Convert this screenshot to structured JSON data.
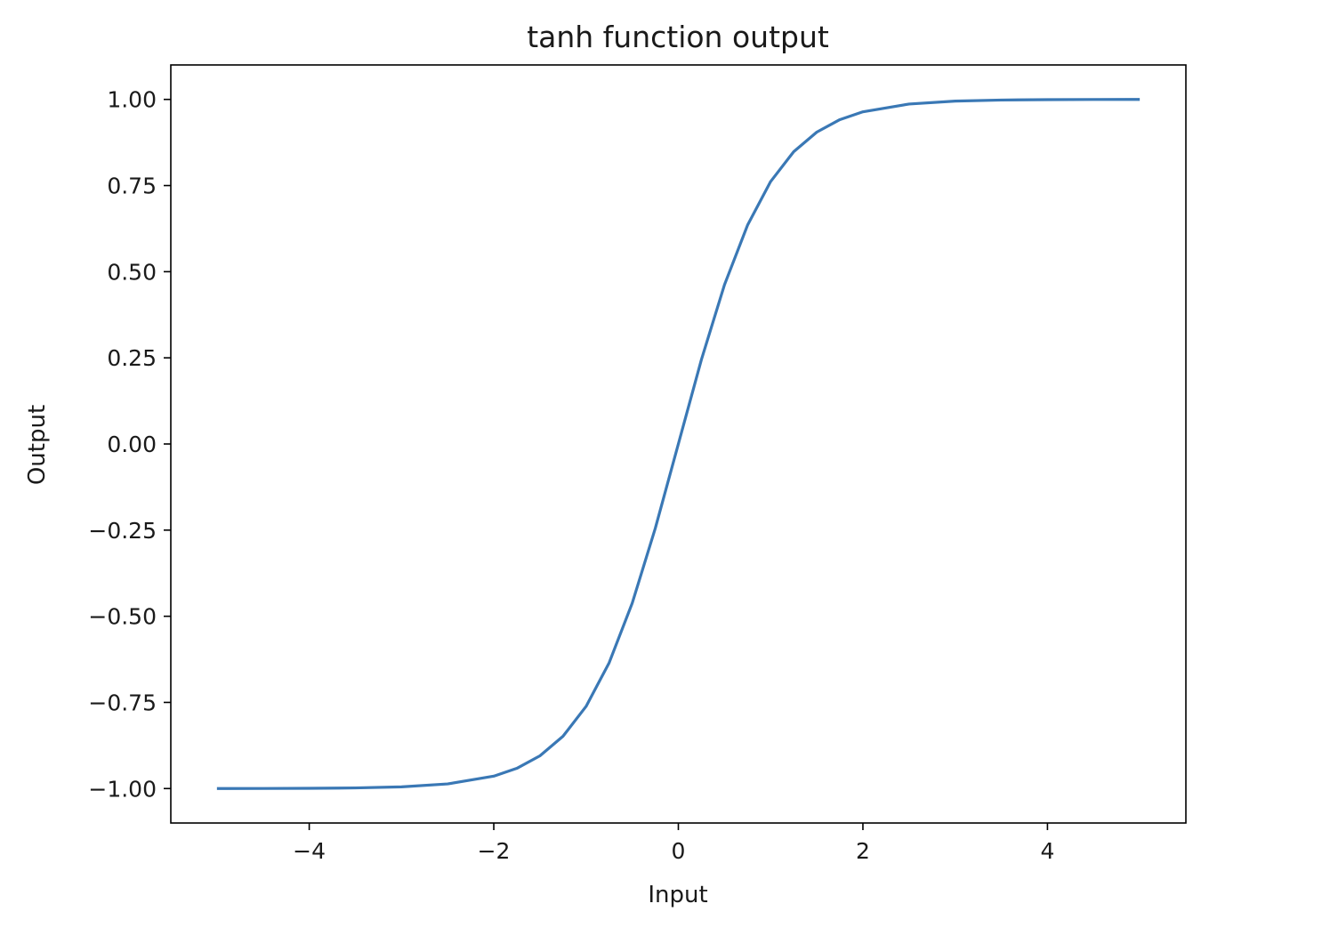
{
  "chart_data": {
    "type": "line",
    "title": "tanh function output",
    "xlabel": "Input",
    "ylabel": "Output",
    "xlim": [
      -5.5,
      5.5
    ],
    "ylim": [
      -1.1,
      1.1
    ],
    "xticks": [
      -4,
      -2,
      0,
      2,
      4
    ],
    "xtick_labels": [
      "−4",
      "−2",
      "0",
      "2",
      "4"
    ],
    "yticks": [
      1.0,
      0.75,
      0.5,
      0.25,
      0.0,
      -0.25,
      -0.5,
      -0.75,
      -1.0
    ],
    "ytick_labels": [
      "1.00",
      "0.75",
      "0.50",
      "0.25",
      "0.00",
      "−0.25",
      "−0.50",
      "−0.75",
      "−1.00"
    ],
    "grid": false,
    "series": [
      {
        "color": "#3a78b5",
        "x": [
          -5.0,
          -4.5,
          -4.0,
          -3.5,
          -3.0,
          -2.5,
          -2.0,
          -1.75,
          -1.5,
          -1.25,
          -1.0,
          -0.75,
          -0.5,
          -0.25,
          0.0,
          0.25,
          0.5,
          0.75,
          1.0,
          1.25,
          1.5,
          1.75,
          2.0,
          2.5,
          3.0,
          3.5,
          4.0,
          4.5,
          5.0
        ],
        "y": [
          -0.9999,
          -0.9998,
          -0.9993,
          -0.9982,
          -0.9951,
          -0.9866,
          -0.964,
          -0.9413,
          -0.9051,
          -0.8483,
          -0.7616,
          -0.6351,
          -0.4621,
          -0.2449,
          0.0,
          0.2449,
          0.4621,
          0.6351,
          0.7616,
          0.8483,
          0.9051,
          0.9413,
          0.964,
          0.9866,
          0.9951,
          0.9982,
          0.9993,
          0.9998,
          0.9999
        ]
      }
    ]
  }
}
